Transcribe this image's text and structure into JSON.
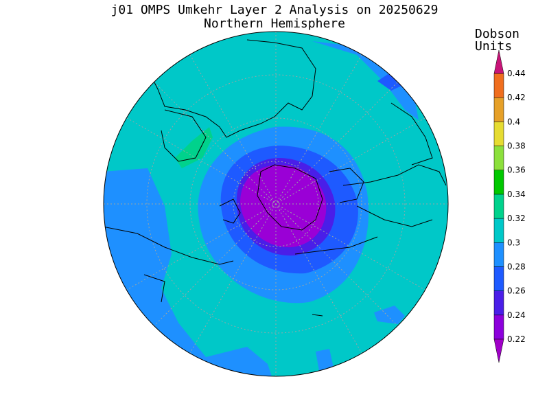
{
  "title": "j01 OMPS Umkehr Layer 2 Analysis on 20250629",
  "subtitle": "Northern Hemisphere",
  "colorbar": {
    "unit_line1": "Dobson",
    "unit_line2": "Units",
    "levels": [
      "0.22",
      "0.24",
      "0.26",
      "0.28",
      "0.3",
      "0.32",
      "0.34",
      "0.36",
      "0.38",
      "0.4",
      "0.42",
      "0.44"
    ],
    "colors": [
      "#8c00dc",
      "#4a1ee8",
      "#1e5aff",
      "#1e90ff",
      "#00c8c8",
      "#00d28c",
      "#00c800",
      "#8ce03c",
      "#e6dc32",
      "#e6a028",
      "#f06e1e",
      "#ff0000"
    ],
    "below_color": "#a000c8",
    "above_color": "#c81478"
  },
  "map": {
    "projection": "north-polar-stereographic",
    "background_value_color": "#00c8c8"
  }
}
